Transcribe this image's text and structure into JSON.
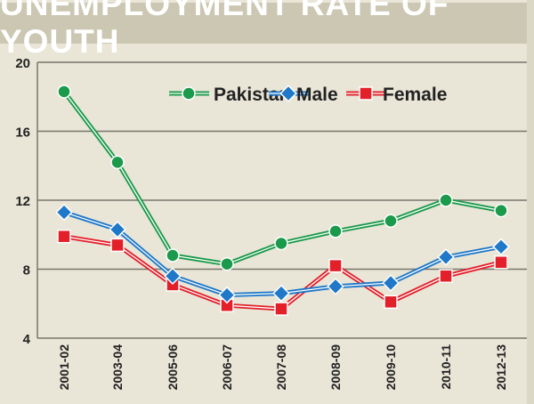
{
  "chart_data": {
    "type": "line",
    "title": "UNEMPLOYMENT RATE OF YOUTH",
    "xlabel": "",
    "ylabel": "",
    "categories": [
      "2001-02",
      "2003-04",
      "2005-06",
      "2006-07",
      "2007-08",
      "2008-09",
      "2009-10",
      "2010-11",
      "2012-13"
    ],
    "ylim": [
      4,
      20
    ],
    "yticks": [
      "20",
      "16",
      "12",
      "8",
      "4"
    ],
    "grid": true,
    "legend_position": "top",
    "series": [
      {
        "name": "Pakistan",
        "color": "#1a9a4a",
        "marker": "circle",
        "values": [
          18.3,
          14.2,
          8.8,
          8.3,
          9.5,
          10.2,
          10.8,
          12.0,
          11.4
        ]
      },
      {
        "name": "Male",
        "color": "#1f78c8",
        "marker": "diamond",
        "values": [
          11.3,
          10.3,
          7.6,
          6.5,
          6.6,
          7.0,
          7.2,
          8.7,
          9.3
        ]
      },
      {
        "name": "Female",
        "color": "#e3202a",
        "marker": "square",
        "values": [
          9.9,
          9.4,
          7.1,
          5.9,
          5.7,
          8.2,
          6.1,
          7.6,
          8.4
        ]
      }
    ]
  }
}
